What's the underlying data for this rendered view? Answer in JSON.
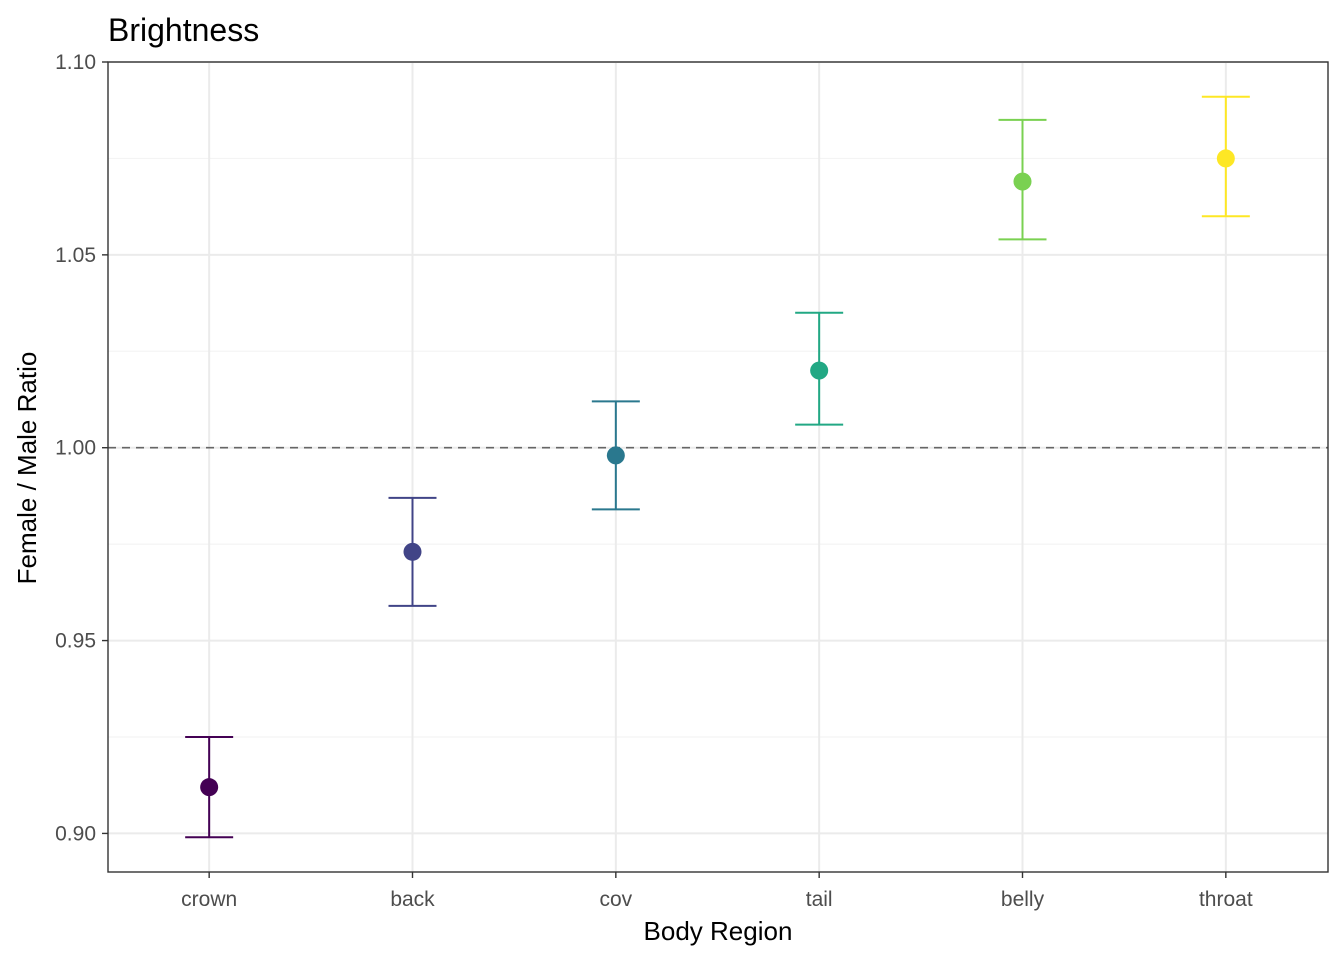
{
  "chart_data": {
    "type": "scatter",
    "title": "Brightness",
    "xlabel": "Body Region",
    "ylabel": "Female / Male Ratio",
    "categories": [
      "crown",
      "back",
      "cov",
      "tail",
      "belly",
      "throat"
    ],
    "series": [
      {
        "values": [
          0.912,
          0.973,
          0.998,
          1.02,
          1.069,
          1.075
        ],
        "lower": [
          0.899,
          0.959,
          0.984,
          1.006,
          1.054,
          1.06
        ],
        "upper": [
          0.925,
          0.987,
          1.012,
          1.035,
          1.085,
          1.091
        ],
        "colors": [
          "#440154",
          "#414487",
          "#2a788e",
          "#22a884",
          "#7ad151",
          "#fde725"
        ]
      }
    ],
    "ylim": [
      0.89,
      1.1
    ],
    "yticks": [
      "0.90",
      "0.95",
      "1.00",
      "1.05",
      "1.10"
    ],
    "reference_line": {
      "y": 1.0,
      "style": "dashed"
    },
    "grid": true,
    "legend": "none"
  }
}
